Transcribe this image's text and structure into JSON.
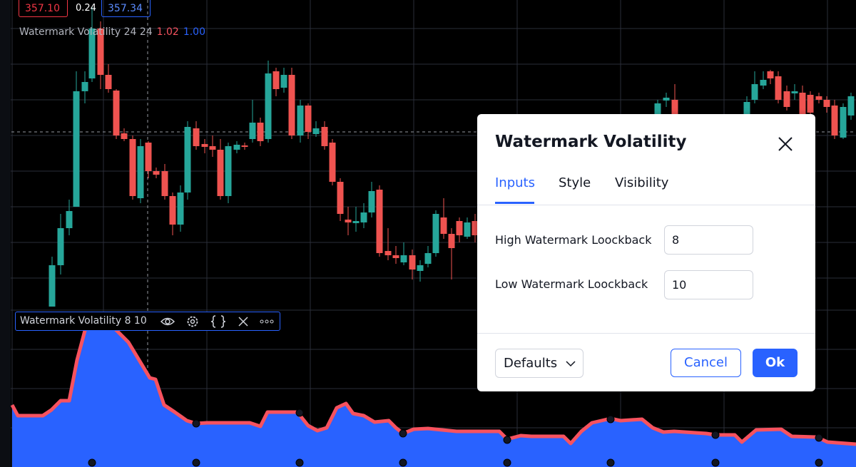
{
  "header": {
    "price_low": "357.10",
    "spread": "0.24",
    "price_high": "357.34"
  },
  "main_legend": {
    "name": "Watermark Volatility 24 24",
    "value_a": "1.02",
    "value_b": "1.00"
  },
  "pane_legend": {
    "name": "Watermark Volatility 8 10"
  },
  "dialog": {
    "title": "Watermark Volatility",
    "tabs": [
      "Inputs",
      "Style",
      "Visibility"
    ],
    "active_tab": 0,
    "fields": [
      {
        "label": "High Watermark Loockback",
        "value": "8"
      },
      {
        "label": "Low Watermark Loockback",
        "value": "10"
      }
    ],
    "defaults": "Defaults",
    "cancel": "Cancel",
    "ok": "Ok"
  }
}
